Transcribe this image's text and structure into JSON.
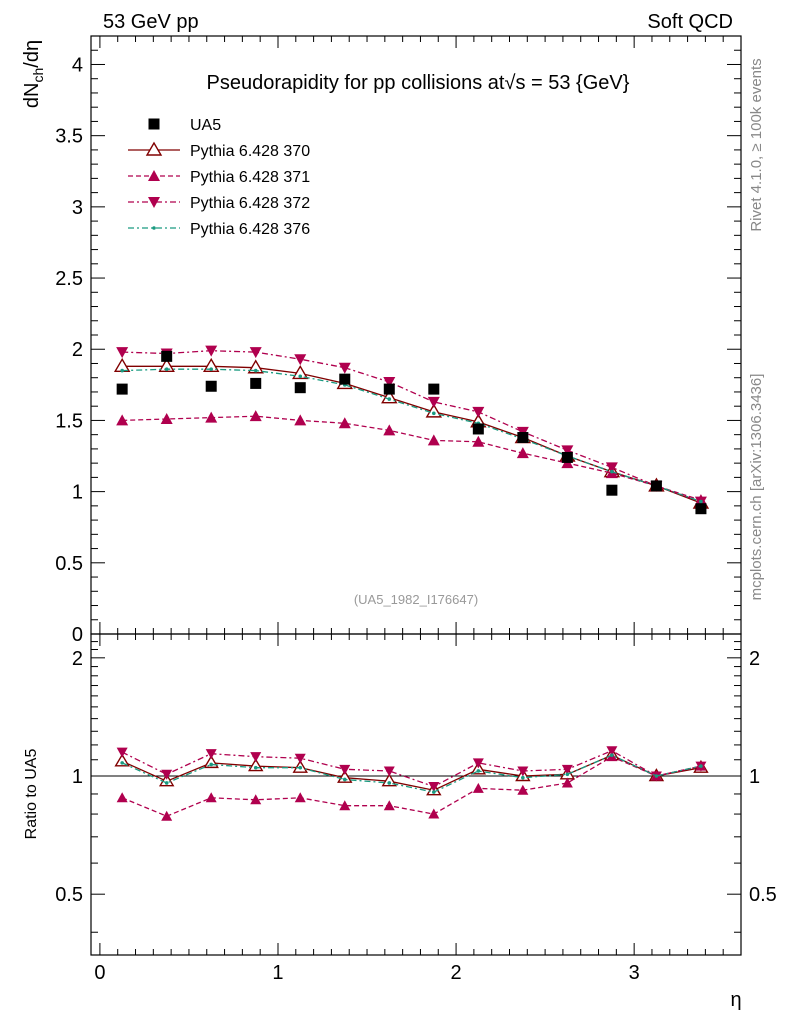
{
  "header": {
    "left": "53 GeV pp",
    "right": "Soft QCD"
  },
  "side_labels": {
    "rivet": "Rivet 4.1.0, ≥ 100k events",
    "mcplots": "mcplots.cern.ch [arXiv:1306.3436]"
  },
  "chart_data": [
    {
      "type": "scatter",
      "panel": "main",
      "title": "Pseudorapidity for pp collisions at√s = 53 {GeV}",
      "ylabel": "dN_ch/dη",
      "xlabel": "",
      "xlim": [
        -0.05,
        3.6
      ],
      "ylim": [
        0,
        4.2
      ],
      "yticks": [
        0,
        0.5,
        1,
        1.5,
        2,
        2.5,
        3,
        3.5,
        4
      ],
      "ytick_labels": [
        "0",
        "0.5",
        "1",
        "1.5",
        "2",
        "2.5",
        "3",
        "3.5",
        "4"
      ],
      "watermark": "(UA5_1982_I176647)",
      "legend_position": "top-left",
      "x": [
        0.125,
        0.375,
        0.625,
        0.875,
        1.125,
        1.375,
        1.625,
        1.875,
        2.125,
        2.375,
        2.625,
        2.875,
        3.125,
        3.375
      ],
      "series": [
        {
          "name": "UA5",
          "style": "data",
          "color": "#000000",
          "values": [
            1.72,
            1.95,
            1.74,
            1.76,
            1.73,
            1.79,
            1.72,
            1.72,
            1.44,
            1.38,
            1.24,
            1.01,
            1.04,
            0.88
          ]
        },
        {
          "name": "Pythia 6.428 370",
          "style": "open-triangle-solid",
          "color": "#800000",
          "values": [
            1.88,
            1.88,
            1.88,
            1.87,
            1.83,
            1.76,
            1.66,
            1.56,
            1.49,
            1.38,
            1.25,
            1.14,
            1.04,
            0.92
          ]
        },
        {
          "name": "Pythia 6.428 371",
          "style": "triangle-dashed",
          "color": "#b0004e",
          "values": [
            1.5,
            1.51,
            1.52,
            1.53,
            1.5,
            1.48,
            1.43,
            1.36,
            1.35,
            1.27,
            1.2,
            1.13,
            1.04,
            0.94
          ]
        },
        {
          "name": "Pythia 6.428 372",
          "style": "down-triangle-dashdot",
          "color": "#b0004e",
          "values": [
            1.98,
            1.97,
            1.99,
            1.98,
            1.93,
            1.87,
            1.77,
            1.63,
            1.56,
            1.42,
            1.29,
            1.17,
            1.04,
            0.93
          ]
        },
        {
          "name": "Pythia 6.428 376",
          "style": "dot-dashdot",
          "color": "#1a9a80",
          "values": [
            1.85,
            1.86,
            1.86,
            1.85,
            1.81,
            1.75,
            1.65,
            1.55,
            1.48,
            1.37,
            1.25,
            1.14,
            1.04,
            0.93
          ]
        }
      ]
    },
    {
      "type": "line",
      "panel": "ratio",
      "ylabel": "Ratio to UA5",
      "xlabel": "η",
      "xlim": [
        -0.05,
        3.6
      ],
      "ylim": [
        0.35,
        2.3
      ],
      "yscale": "log",
      "yticks": [
        0.5,
        1,
        2
      ],
      "ytick_labels": [
        "0.5",
        "1",
        "2"
      ],
      "xticks": [
        0,
        1,
        2,
        3
      ],
      "xtick_labels": [
        "0",
        "1",
        "2",
        "3"
      ],
      "reference_line": 1,
      "x": [
        0.125,
        0.375,
        0.625,
        0.875,
        1.125,
        1.375,
        1.625,
        1.875,
        2.125,
        2.375,
        2.625,
        2.875,
        3.125,
        3.375
      ],
      "series": [
        {
          "name": "Pythia 6.428 370",
          "style": "open-triangle-solid",
          "color": "#800000",
          "values": [
            1.09,
            0.97,
            1.08,
            1.06,
            1.05,
            0.99,
            0.97,
            0.92,
            1.04,
            1.0,
            1.01,
            1.13,
            1.0,
            1.05
          ]
        },
        {
          "name": "Pythia 6.428 371",
          "style": "triangle-dashed",
          "color": "#b0004e",
          "values": [
            0.88,
            0.79,
            0.88,
            0.87,
            0.88,
            0.84,
            0.84,
            0.8,
            0.93,
            0.92,
            0.96,
            1.12,
            1.0,
            1.06
          ]
        },
        {
          "name": "Pythia 6.428 372",
          "style": "down-triangle-dashdot",
          "color": "#b0004e",
          "values": [
            1.15,
            1.01,
            1.14,
            1.12,
            1.11,
            1.04,
            1.03,
            0.94,
            1.08,
            1.03,
            1.04,
            1.16,
            1.0,
            1.06
          ]
        },
        {
          "name": "Pythia 6.428 376",
          "style": "dot-dashdot",
          "color": "#1a9a80",
          "values": [
            1.08,
            0.96,
            1.07,
            1.05,
            1.05,
            0.98,
            0.96,
            0.91,
            1.03,
            0.99,
            1.01,
            1.13,
            1.0,
            1.06
          ]
        }
      ]
    }
  ]
}
